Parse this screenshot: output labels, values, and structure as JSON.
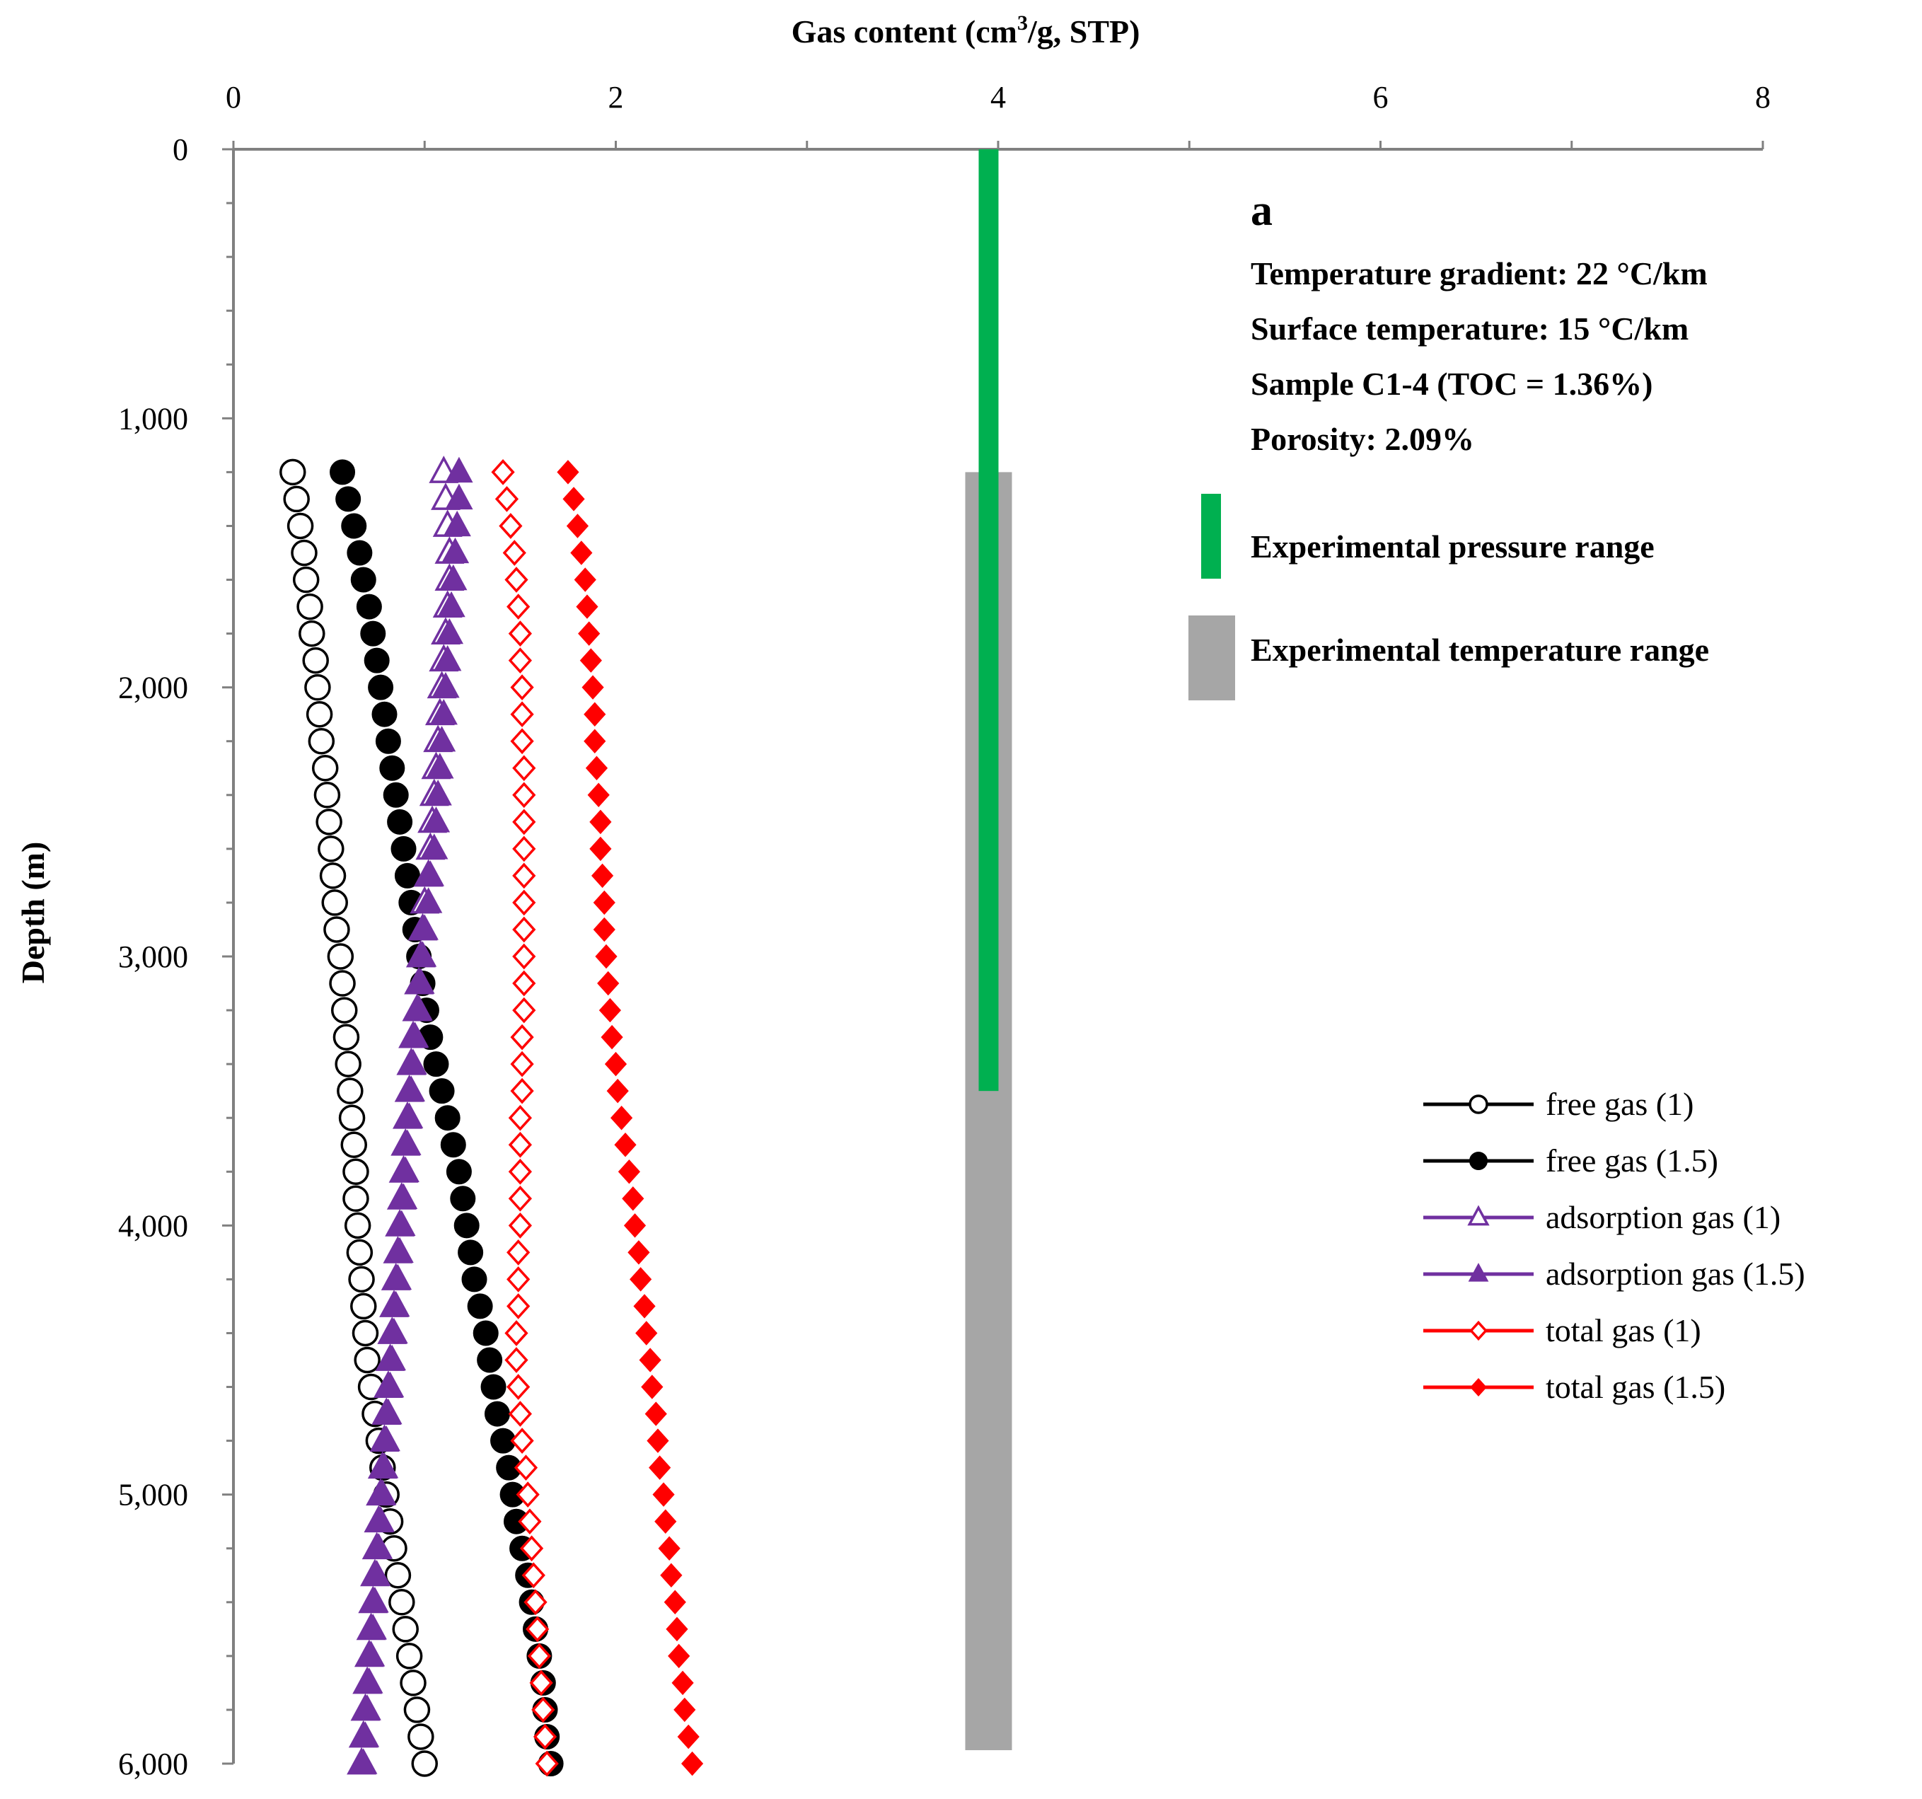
{
  "chart_data": {
    "type": "scatter",
    "title": "",
    "xlabel_prefix": "Gas content (cm",
    "xlabel_sup": "3",
    "xlabel_suffix": "/g, STP)",
    "ylabel": "Depth (m)",
    "xlim": [
      0,
      8
    ],
    "ylim": [
      0,
      6000
    ],
    "x_ticks": [
      0,
      2,
      4,
      6,
      8
    ],
    "x_tick_labels": [
      "0",
      "2",
      "4",
      "6",
      "8"
    ],
    "y_ticks": [
      0,
      1000,
      2000,
      3000,
      4000,
      5000,
      6000
    ],
    "y_tick_labels": [
      "0",
      "1,000",
      "2,000",
      "3,000",
      "4,000",
      "5,000",
      "6,000"
    ],
    "depths": [
      1200,
      1300,
      1400,
      1500,
      1600,
      1700,
      1800,
      1900,
      2000,
      2100,
      2200,
      2300,
      2400,
      2500,
      2600,
      2700,
      2800,
      2900,
      3000,
      3100,
      3200,
      3300,
      3400,
      3500,
      3600,
      3700,
      3800,
      3900,
      4000,
      4100,
      4200,
      4300,
      4400,
      4500,
      4600,
      4700,
      4800,
      4900,
      5000,
      5100,
      5200,
      5300,
      5400,
      5500,
      5600,
      5700,
      5800,
      5900,
      6000
    ],
    "series": [
      {
        "name": "free gas (1)",
        "color": "#000000",
        "marker": "circle-open",
        "values": [
          0.31,
          0.33,
          0.35,
          0.37,
          0.38,
          0.4,
          0.41,
          0.43,
          0.44,
          0.45,
          0.46,
          0.48,
          0.49,
          0.5,
          0.51,
          0.52,
          0.53,
          0.54,
          0.56,
          0.57,
          0.58,
          0.59,
          0.6,
          0.61,
          0.62,
          0.63,
          0.64,
          0.64,
          0.65,
          0.66,
          0.67,
          0.68,
          0.69,
          0.7,
          0.72,
          0.74,
          0.76,
          0.78,
          0.8,
          0.82,
          0.84,
          0.86,
          0.88,
          0.9,
          0.92,
          0.94,
          0.96,
          0.98,
          1.0
        ]
      },
      {
        "name": "free gas (1.5)",
        "color": "#000000",
        "marker": "circle-filled",
        "values": [
          0.57,
          0.6,
          0.63,
          0.66,
          0.68,
          0.71,
          0.73,
          0.75,
          0.77,
          0.79,
          0.81,
          0.83,
          0.85,
          0.87,
          0.89,
          0.91,
          0.93,
          0.95,
          0.97,
          0.99,
          1.01,
          1.03,
          1.06,
          1.09,
          1.12,
          1.15,
          1.18,
          1.2,
          1.22,
          1.24,
          1.26,
          1.29,
          1.32,
          1.34,
          1.36,
          1.38,
          1.41,
          1.44,
          1.46,
          1.48,
          1.51,
          1.54,
          1.56,
          1.58,
          1.6,
          1.62,
          1.63,
          1.64,
          1.66
        ]
      },
      {
        "name": "adsorption gas (1)",
        "color": "#7030a0",
        "marker": "triangle-open",
        "values": [
          1.1,
          1.11,
          1.12,
          1.13,
          1.13,
          1.12,
          1.11,
          1.1,
          1.09,
          1.08,
          1.07,
          1.06,
          1.05,
          1.04,
          1.03,
          1.02,
          1.0,
          0.99,
          0.98,
          0.97,
          0.96,
          0.94,
          0.93,
          0.92,
          0.91,
          0.9,
          0.89,
          0.88,
          0.87,
          0.86,
          0.85,
          0.84,
          0.83,
          0.82,
          0.81,
          0.8,
          0.79,
          0.78,
          0.77,
          0.76,
          0.75,
          0.74,
          0.73,
          0.72,
          0.71,
          0.7,
          0.69,
          0.68,
          0.67
        ]
      },
      {
        "name": "adsorption gas (1.5)",
        "color": "#7030a0",
        "marker": "triangle-filled",
        "values": [
          1.18,
          1.18,
          1.17,
          1.16,
          1.15,
          1.14,
          1.13,
          1.12,
          1.11,
          1.1,
          1.09,
          1.08,
          1.07,
          1.06,
          1.05,
          1.03,
          1.02,
          1.0,
          0.99,
          0.98,
          0.97,
          0.95,
          0.94,
          0.93,
          0.92,
          0.91,
          0.9,
          0.89,
          0.88,
          0.87,
          0.86,
          0.85,
          0.84,
          0.83,
          0.82,
          0.81,
          0.8,
          0.79,
          0.78,
          0.77,
          0.76,
          0.75,
          0.74,
          0.73,
          0.72,
          0.71,
          0.7,
          0.69,
          0.68
        ]
      },
      {
        "name": "total gas (1)",
        "color": "#ff0000",
        "marker": "diamond-open",
        "values": [
          1.41,
          1.43,
          1.45,
          1.47,
          1.48,
          1.49,
          1.5,
          1.5,
          1.51,
          1.51,
          1.51,
          1.52,
          1.52,
          1.52,
          1.52,
          1.52,
          1.52,
          1.52,
          1.52,
          1.52,
          1.52,
          1.51,
          1.51,
          1.51,
          1.5,
          1.5,
          1.5,
          1.5,
          1.5,
          1.49,
          1.49,
          1.49,
          1.48,
          1.48,
          1.49,
          1.5,
          1.51,
          1.53,
          1.54,
          1.55,
          1.56,
          1.57,
          1.58,
          1.59,
          1.6,
          1.61,
          1.62,
          1.63,
          1.64
        ]
      },
      {
        "name": "total gas (1.5)",
        "color": "#ff0000",
        "marker": "diamond-filled",
        "values": [
          1.75,
          1.78,
          1.8,
          1.82,
          1.84,
          1.85,
          1.86,
          1.87,
          1.88,
          1.89,
          1.89,
          1.9,
          1.91,
          1.92,
          1.92,
          1.93,
          1.94,
          1.94,
          1.95,
          1.96,
          1.97,
          1.98,
          2.0,
          2.01,
          2.03,
          2.05,
          2.07,
          2.09,
          2.1,
          2.12,
          2.13,
          2.15,
          2.16,
          2.18,
          2.19,
          2.21,
          2.22,
          2.23,
          2.25,
          2.26,
          2.28,
          2.29,
          2.31,
          2.32,
          2.33,
          2.35,
          2.36,
          2.38,
          2.4
        ]
      }
    ],
    "ranges": [
      {
        "name": "Experimental pressure range",
        "color": "#00b050",
        "x": 3.95,
        "y_from": 0,
        "y_to": 3500
      },
      {
        "name": "Experimental temperature range",
        "color": "#a6a6a6",
        "x": 3.95,
        "y_from": 1200,
        "y_to": 5950
      }
    ],
    "annotation": {
      "panel": "a",
      "lines": [
        "Temperature gradient: 22 °C/km",
        "Surface temperature: 15 °C/km",
        "Sample C1-4 (TOC = 1.36%)",
        "Porosity: 2.09%"
      ]
    },
    "legend_position": "bottom-right"
  }
}
